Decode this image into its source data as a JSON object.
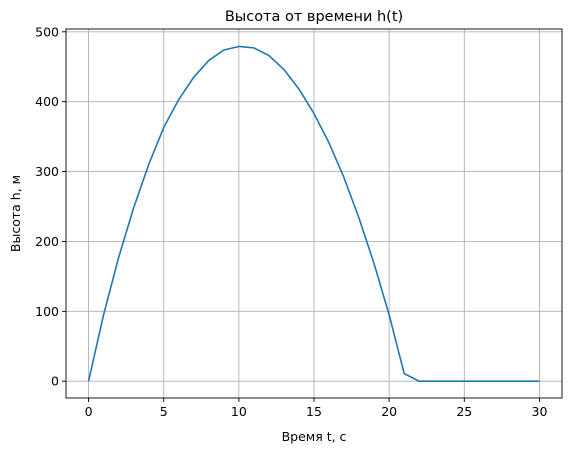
{
  "chart_data": {
    "type": "line",
    "title": "Высота от времени h(t)",
    "xlabel": "Время t, с",
    "ylabel": "Высота h, м",
    "xlim": [
      -1.5,
      31.5
    ],
    "ylim": [
      -24,
      504
    ],
    "xticks": [
      0,
      5,
      10,
      15,
      20,
      25,
      30
    ],
    "yticks": [
      0,
      100,
      200,
      300,
      400,
      500
    ],
    "grid": true,
    "series": [
      {
        "color": "#1f77b4",
        "x": [
          0,
          1,
          2,
          3,
          4,
          5,
          6,
          7,
          8,
          9,
          10,
          11,
          12,
          13,
          14,
          15,
          16,
          17,
          18,
          19,
          20,
          21,
          22,
          23,
          24,
          25,
          26,
          27,
          28,
          29,
          30
        ],
        "y": [
          0,
          95,
          177,
          248,
          310,
          363,
          403,
          435,
          459,
          474,
          479,
          477,
          466,
          446,
          418,
          383,
          341,
          291,
          233,
          168,
          95,
          11,
          0,
          0,
          0,
          0,
          0,
          0,
          0,
          0,
          0
        ]
      }
    ]
  }
}
